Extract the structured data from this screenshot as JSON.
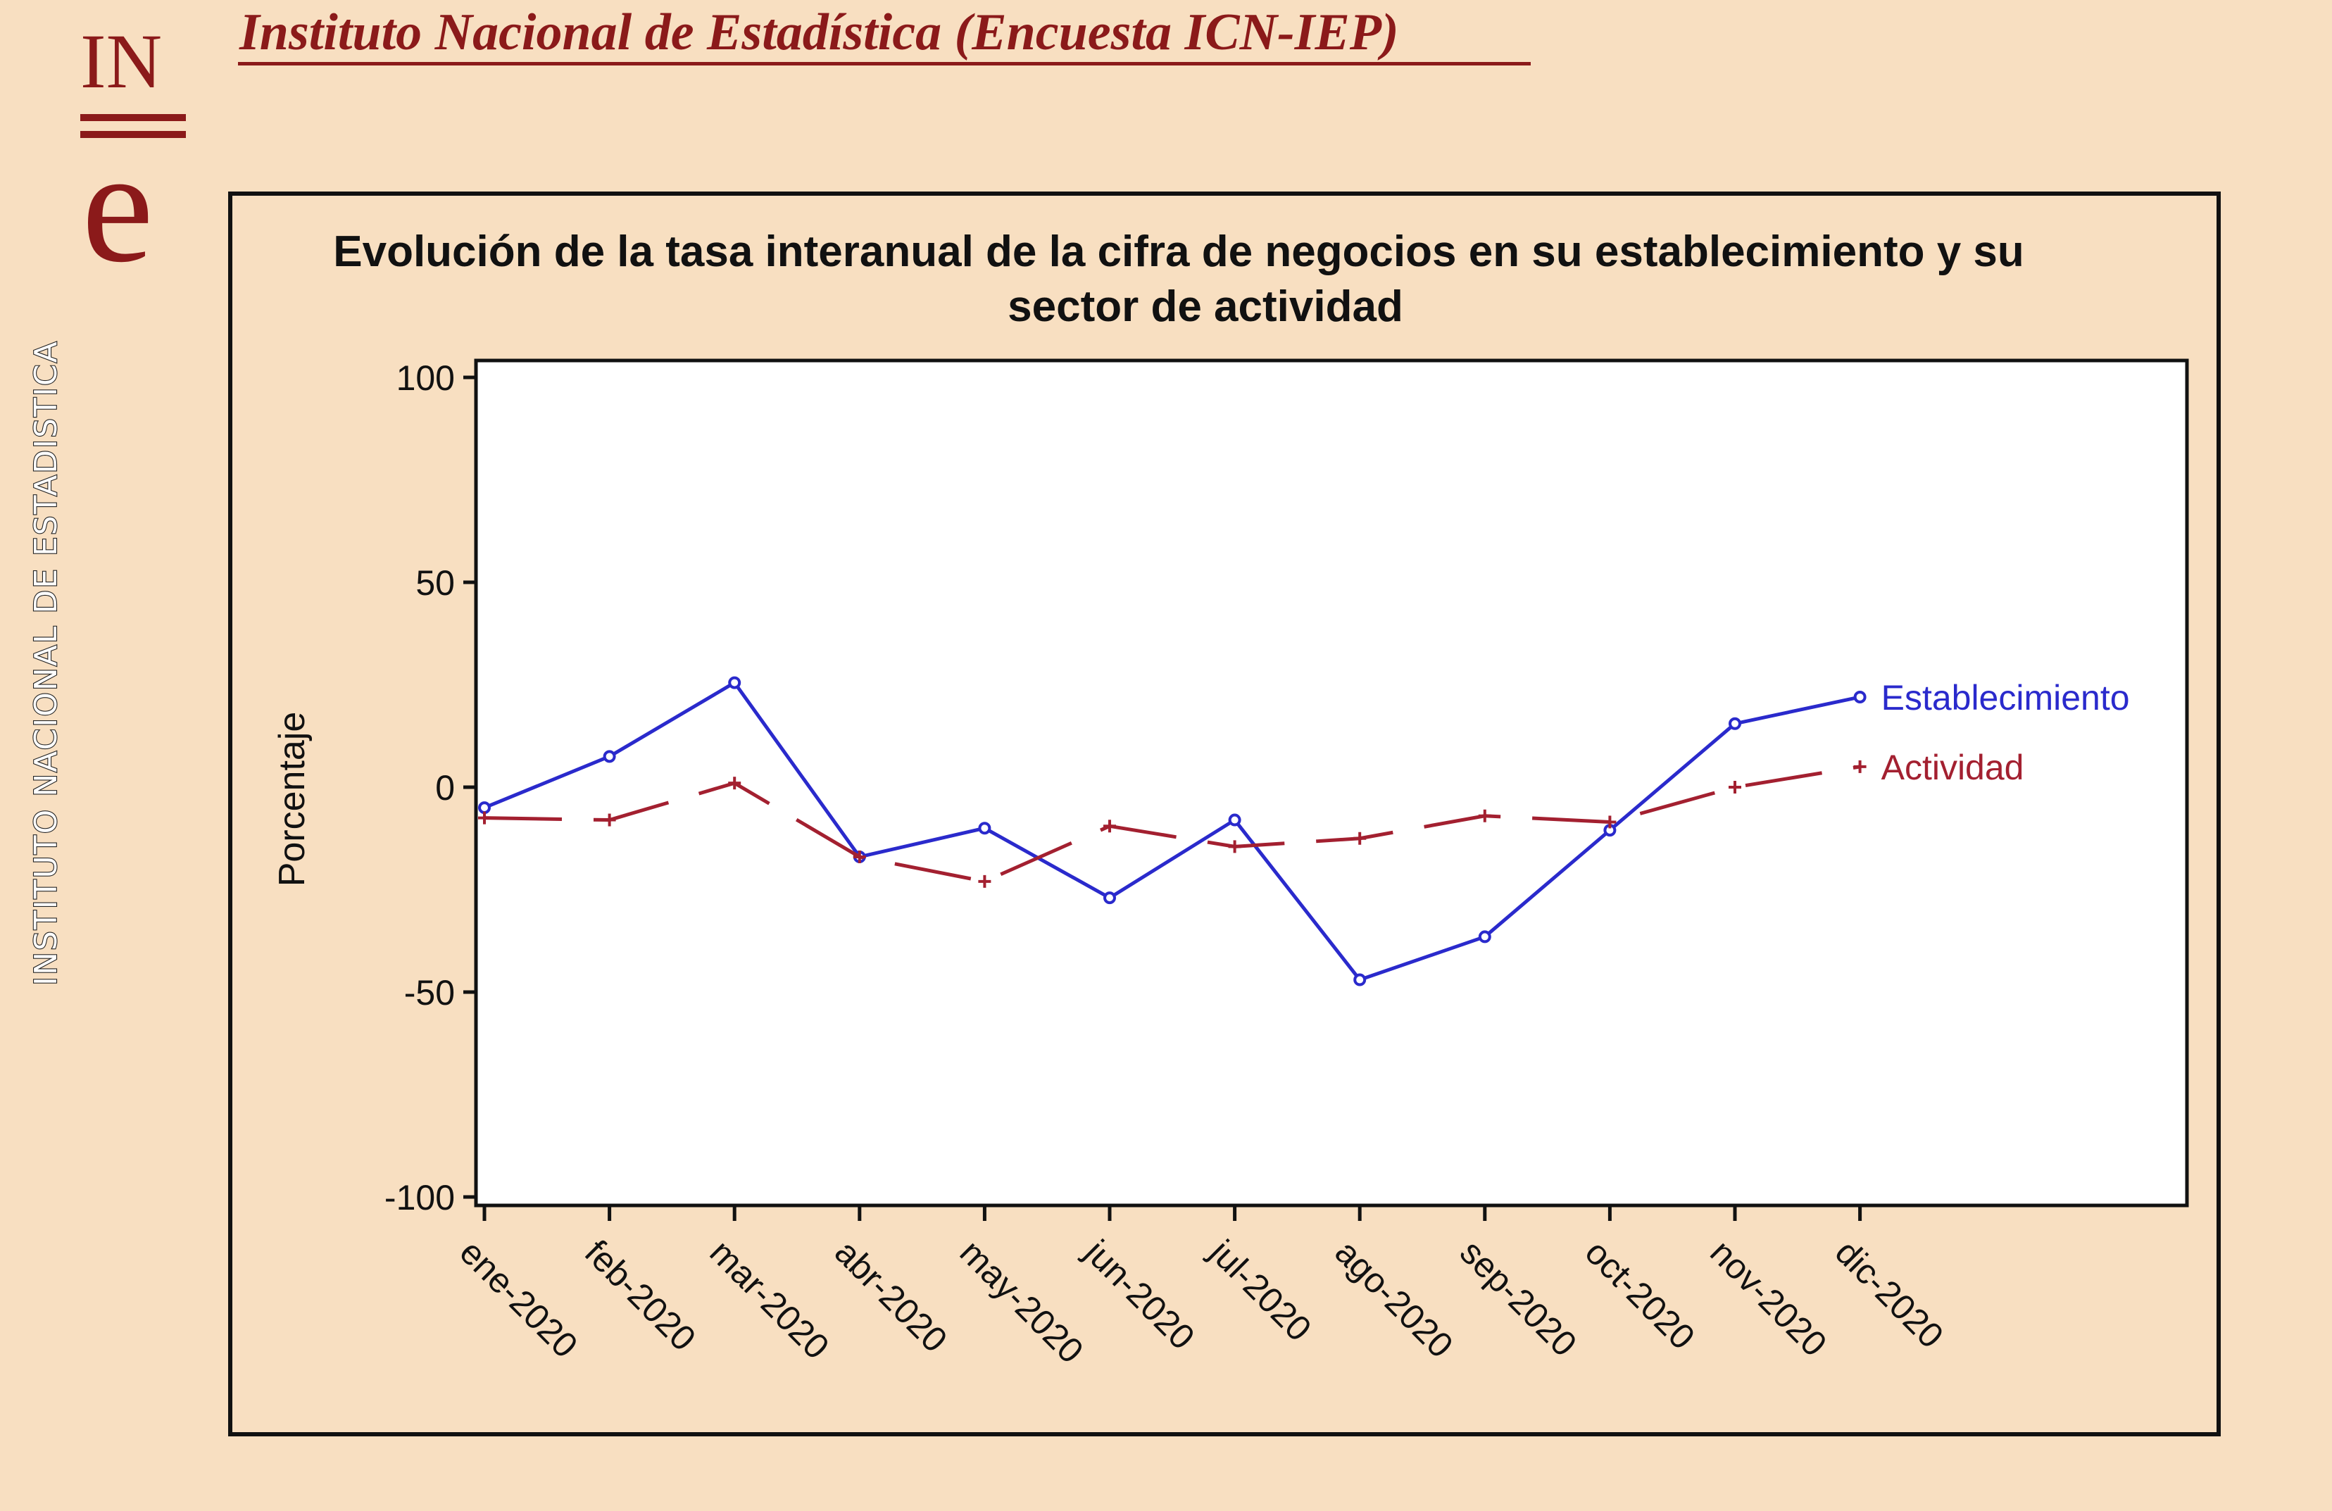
{
  "header": {
    "title": "Instituto Nacional de Estadística (Encuesta ICN-IEP)"
  },
  "logo": {
    "letters_top": "IN",
    "letters_bottom": "e",
    "vertical_text": "INSTITUTO NACIONAL DE ESTADISTICA"
  },
  "colors": {
    "background": "#f8dfc1",
    "brand": "#8b1a1a",
    "series_establecimiento": "#2a2acc",
    "series_actividad": "#a32030"
  },
  "chart_data": {
    "type": "line",
    "title_line1": "Evolución de la tasa interanual de la cifra de negocios en su establecimiento y su",
    "title_line2": "sector de actividad",
    "ylabel": "Porcentaje",
    "xlabel": "",
    "ylim": [
      -100,
      100
    ],
    "yticks": [
      100,
      50,
      0,
      -50,
      -100
    ],
    "grid": false,
    "legend_position": "inline-right",
    "categories": [
      "ene-2020",
      "feb-2020",
      "mar-2020",
      "abr-2020",
      "may-2020",
      "jun-2020",
      "jul-2020",
      "ago-2020",
      "sep-2020",
      "oct-2020",
      "nov-2020",
      "dic-2020"
    ],
    "series": [
      {
        "name": "Establecimiento",
        "color": "#2a2acc",
        "style": "solid",
        "marker": "circle",
        "values": [
          -5,
          7.5,
          25.5,
          -17,
          -10,
          -27,
          -8,
          -47,
          -36.5,
          -10.5,
          15.5,
          22
        ]
      },
      {
        "name": "Actividad",
        "color": "#a32030",
        "style": "dashed",
        "marker": "plus",
        "values": [
          -7.5,
          -8,
          1,
          -17,
          -23,
          -9.5,
          -14.5,
          -12.5,
          -7,
          -8.5,
          0,
          5
        ]
      }
    ]
  }
}
